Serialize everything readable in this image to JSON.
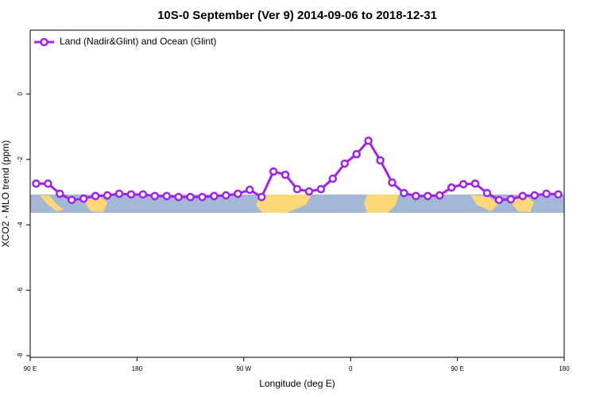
{
  "chart_data": {
    "type": "line",
    "title": "10S-0 September (Ver 9)   2014-09-06 to 2018-12-31",
    "xlabel": "Longitude (deg E)",
    "ylabel": "XCO2 - MLO trend (ppm)",
    "x": [
      95,
      105,
      115,
      125,
      135,
      145,
      155,
      165,
      175,
      185,
      195,
      205,
      215,
      225,
      235,
      245,
      255,
      265,
      275,
      285,
      295,
      305,
      315,
      325,
      335,
      345,
      355,
      365,
      375,
      385,
      395,
      405,
      415,
      425,
      435,
      445,
      455,
      465,
      475,
      485,
      495,
      505,
      515,
      525,
      535
    ],
    "series": [
      {
        "name": "Land (Nadir&Glint) and Ocean (Glint)",
        "color": "#a020f0",
        "values": [
          -2.74,
          -2.74,
          -3.05,
          -3.24,
          -3.2,
          -3.12,
          -3.1,
          -3.05,
          -3.07,
          -3.07,
          -3.12,
          -3.12,
          -3.15,
          -3.15,
          -3.15,
          -3.12,
          -3.1,
          -3.05,
          -2.93,
          -3.15,
          -2.37,
          -2.47,
          -2.91,
          -2.98,
          -2.91,
          -2.59,
          -2.13,
          -1.84,
          -1.43,
          -2.03,
          -2.71,
          -3.03,
          -3.12,
          -3.12,
          -3.1,
          -2.86,
          -2.76,
          -2.74,
          -3.03,
          -3.24,
          -3.22,
          -3.12,
          -3.1,
          -3.05,
          -3.07
        ]
      }
    ],
    "xlim": [
      90,
      540
    ],
    "xticks": [
      {
        "value": 90,
        "label": "90 E"
      },
      {
        "value": 180,
        "label": "180"
      },
      {
        "value": 270,
        "label": "90 W"
      },
      {
        "value": 360,
        "label": "0"
      },
      {
        "value": 450,
        "label": "90 E"
      },
      {
        "value": 540,
        "label": "180"
      }
    ],
    "ylim": [
      -8.05,
      1.95
    ],
    "yticks": [
      -8,
      -6,
      -4,
      -2,
      0
    ],
    "legend": "top-left"
  }
}
